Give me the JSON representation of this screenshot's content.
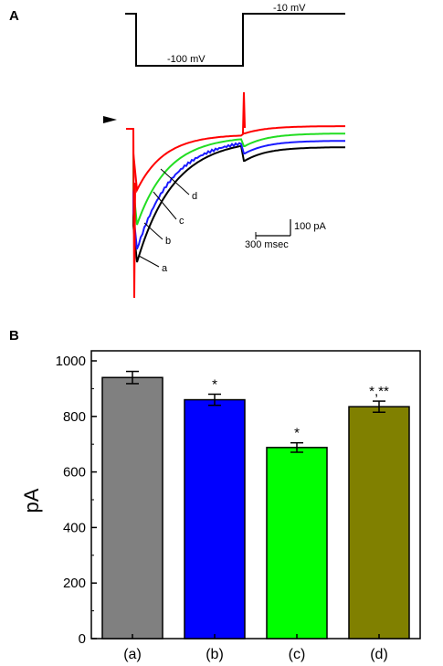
{
  "panel_a": {
    "letter": "A",
    "protocol": {
      "hold_label": "-10 mV",
      "step_label": "-100 mV"
    },
    "scale_bar": {
      "current_label": "100 pA",
      "time_label": "300  msec"
    },
    "trace_labels": [
      "a",
      "b",
      "c",
      "d"
    ],
    "trace_colors": [
      "#000000",
      "#1a1aff",
      "#22dd22",
      "#ff0000"
    ]
  },
  "panel_b": {
    "letter": "B",
    "chart_data": {
      "type": "bar",
      "categories": [
        "(a)",
        "(b)",
        "(c)",
        "(d)"
      ],
      "values": [
        940,
        860,
        688,
        835
      ],
      "errors": [
        22,
        20,
        17,
        20
      ],
      "colors": [
        "#808080",
        "#0000ff",
        "#00ff00",
        "#808000"
      ],
      "significance": [
        "",
        "*",
        "*",
        "*,**"
      ],
      "ylabel": "pA",
      "ylim": [
        0,
        1000
      ],
      "yticks": [
        0,
        200,
        400,
        600,
        800,
        1000
      ],
      "grid": false
    }
  }
}
